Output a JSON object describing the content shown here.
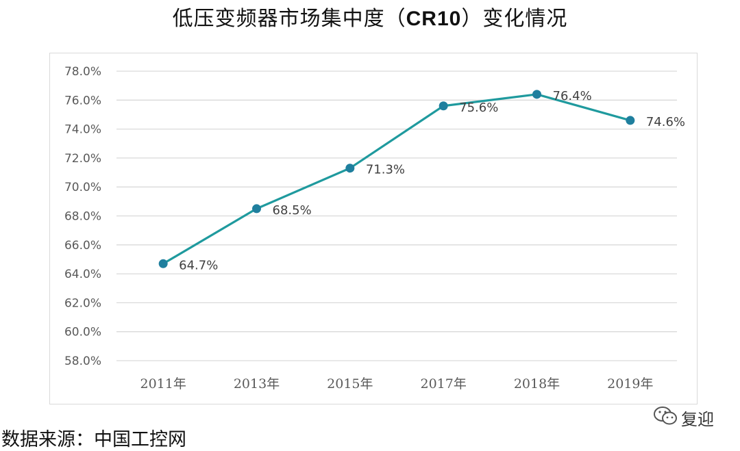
{
  "header": {
    "title_part1": "低压变频器市场集中度（",
    "title_bold": "CR10",
    "title_part2": "）变化情况"
  },
  "chart_data": {
    "type": "line",
    "categories": [
      "2011年",
      "2013年",
      "2015年",
      "2017年",
      "2018年",
      "2019年"
    ],
    "series": [
      {
        "values": [
          64.7,
          68.5,
          71.3,
          75.6,
          76.4,
          74.6
        ]
      }
    ],
    "data_labels": [
      "64.7%",
      "68.5%",
      "71.3%",
      "75.6%",
      "76.4%",
      "74.6%"
    ],
    "ylim": [
      58.0,
      78.0
    ],
    "yticks": [
      "58.0%",
      "60.0%",
      "62.0%",
      "64.0%",
      "66.0%",
      "68.0%",
      "70.0%",
      "72.0%",
      "74.0%",
      "76.0%",
      "78.0%"
    ],
    "grid": true,
    "line_color": "#1f9a9e",
    "marker_color": "#1f7f9e"
  },
  "footer": {
    "source": "数据来源：中国工控网"
  },
  "watermark": {
    "icon": "wechat-icon",
    "text": "复迎"
  }
}
